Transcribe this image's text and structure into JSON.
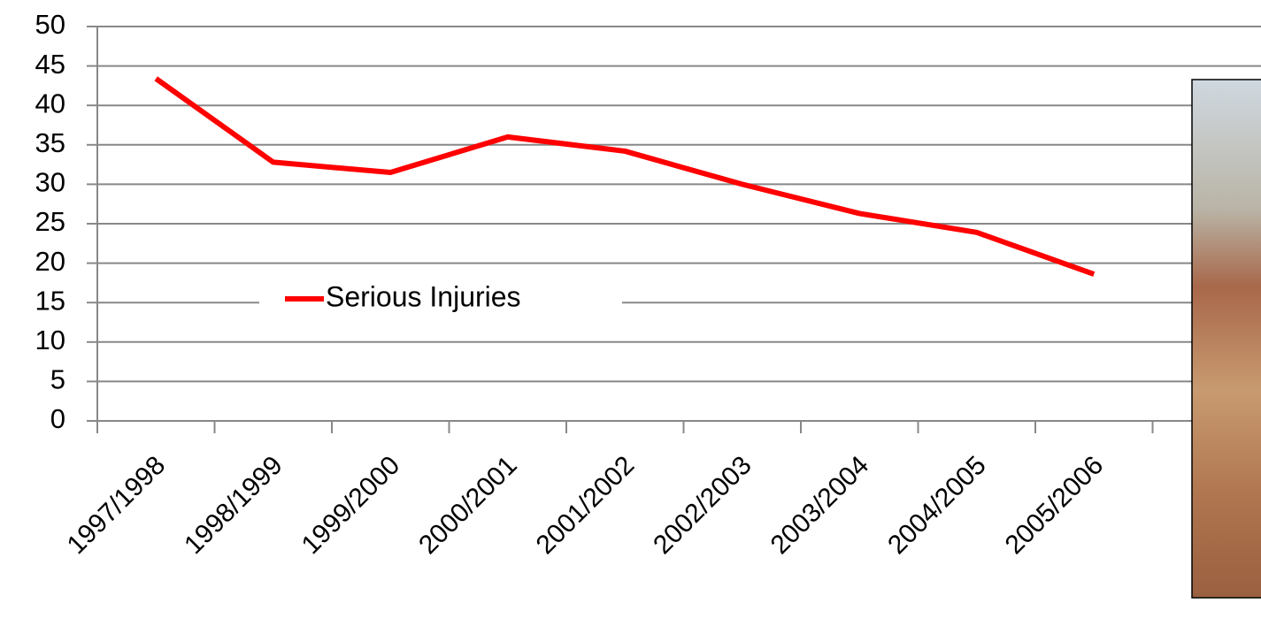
{
  "chart_data": {
    "type": "line",
    "categories": [
      "1997/1998",
      "1998/1999",
      "1999/2000",
      "2000/2001",
      "2001/2002",
      "2002/2003",
      "2003/2004",
      "2004/2005",
      "2005/2006",
      null
    ],
    "series": [
      {
        "name": "Serious Injuries",
        "color": "#ff0000",
        "values": [
          43.4,
          32.8,
          31.5,
          36.0,
          34.2,
          30.0,
          26.3,
          23.9,
          18.6,
          null
        ]
      }
    ],
    "ylim": [
      0,
      50
    ],
    "yticks": [
      0,
      5,
      10,
      15,
      20,
      25,
      30,
      35,
      40,
      45,
      50
    ],
    "grid": true
  }
}
